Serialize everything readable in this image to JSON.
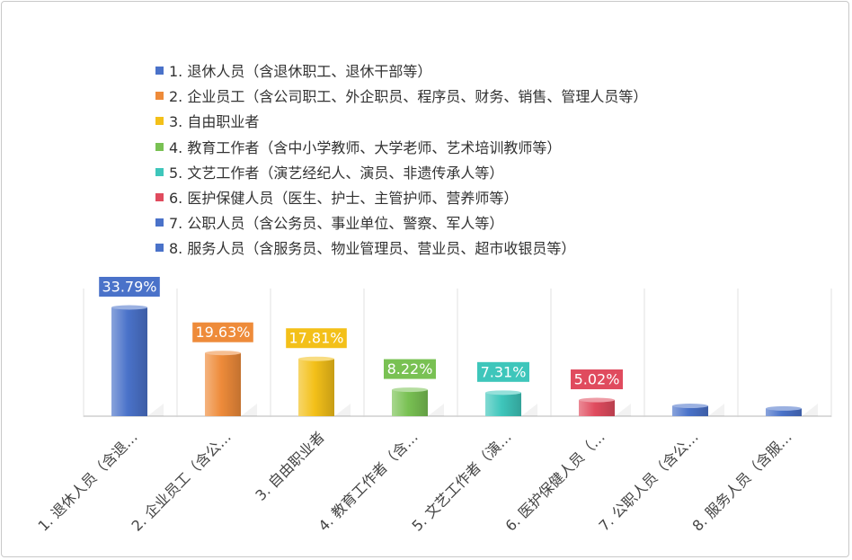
{
  "chart_data": {
    "type": "bar",
    "categories": [
      "1. 退休人员（含退休职工、退休干部等）",
      "2. 企业员工（含公司职工、外企职员、程序员、财务、销售、管理人员等）",
      "3. 自由职业者",
      "4. 教育工作者（含中小学教师、大学老师、艺术培训教师等）",
      "5. 文艺工作者（演艺经纪人、演员、非遗传承人等）",
      "6. 医护保健人员（医生、护士、主管护师、营养师等）",
      "7. 公职人员（含公务员、事业单位、警察、军人等）",
      "8. 服务人员（含服务员、物业管理员、营业员、超市收银员等）"
    ],
    "tick_labels": [
      "1. 退休人员（含退…",
      "2. 企业员工（含公…",
      "3. 自由职业者",
      "4. 教育工作者（含…",
      "5. 文艺工作者（演…",
      "6. 医护保健人员（…",
      "7. 公职人员（含公…",
      "8. 服务人员（含服…"
    ],
    "values": [
      33.79,
      19.63,
      17.81,
      8.22,
      7.31,
      5.02,
      3.2,
      2.4
    ],
    "data_labels": [
      "33.79%",
      "19.63%",
      "17.81%",
      "8.22%",
      "7.31%",
      "5.02%",
      "",
      ""
    ],
    "colors": [
      "#4a72c9",
      "#ee8b3a",
      "#f3c019",
      "#79c153",
      "#3ec6bb",
      "#e04b5e",
      "#4a72c9",
      "#4a72c9"
    ],
    "ylim": [
      0,
      36
    ],
    "grid": "vertical separators",
    "legend_position": "top-left",
    "title": "",
    "xlabel": "",
    "ylabel": ""
  }
}
